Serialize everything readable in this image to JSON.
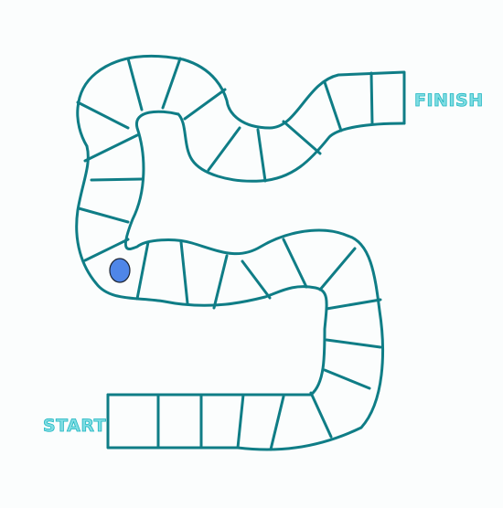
{
  "board": {
    "start_label": "START",
    "finish_label": "FINISH",
    "background_color": "#fbfdfd",
    "track_color": "#0f7d86",
    "label_color": "#7fdde3"
  },
  "token": {
    "color": "#4f86e8",
    "icon": "player-token"
  }
}
